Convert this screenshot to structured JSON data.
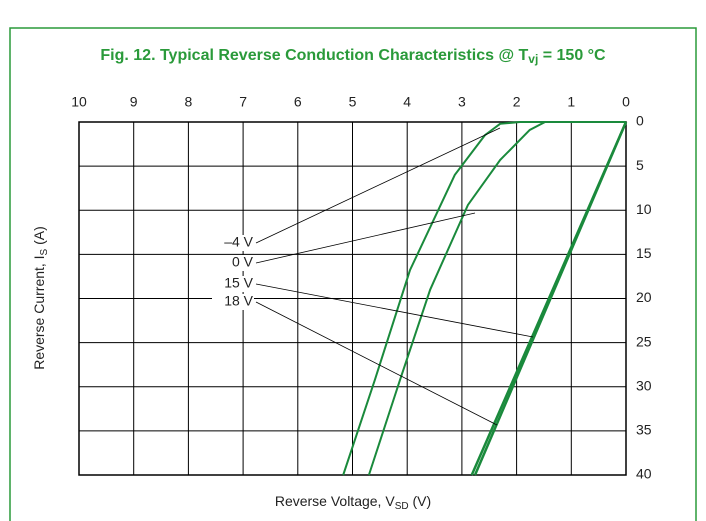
{
  "chart_data": {
    "type": "line",
    "title": [
      "Fig. 12. Typical Reverse Conduction Characteristics @ T",
      "vj",
      " = 150 °C"
    ],
    "xlabel": [
      "Reverse Voltage, V",
      "SD",
      " (V)"
    ],
    "ylabel": [
      "Reverse Current, I",
      "S",
      " (A)"
    ],
    "xlim": [
      10,
      0
    ],
    "xticks": [
      10,
      9,
      8,
      7,
      6,
      5,
      4,
      3,
      2,
      1,
      0
    ],
    "ylim": [
      0,
      40
    ],
    "yticks": [
      0,
      5,
      10,
      15,
      20,
      25,
      30,
      35,
      40
    ],
    "grid": true,
    "series": [
      {
        "name": "–4 V",
        "color": "#1a8a3c",
        "x": [
          5.17,
          4.59,
          3.95,
          3.13,
          2.58,
          2.3,
          1.94,
          0
        ],
        "values": [
          40,
          29.2,
          16.8,
          6,
          1.5,
          0.2,
          0,
          0
        ]
      },
      {
        "name": "0 V",
        "color": "#1a8a3c",
        "x": [
          4.7,
          4.13,
          3.58,
          2.89,
          2.3,
          1.76,
          1.48,
          0
        ],
        "values": [
          40,
          29.2,
          19,
          9.4,
          4.3,
          0.9,
          0,
          0
        ]
      },
      {
        "name": "15 V",
        "color": "#1a8a3c",
        "x": [
          2.82,
          0
        ],
        "values": [
          40,
          0
        ]
      },
      {
        "name": "18 V",
        "color": "#1a8a3c",
        "x": [
          2.76,
          0
        ],
        "values": [
          40,
          0
        ]
      }
    ]
  }
}
